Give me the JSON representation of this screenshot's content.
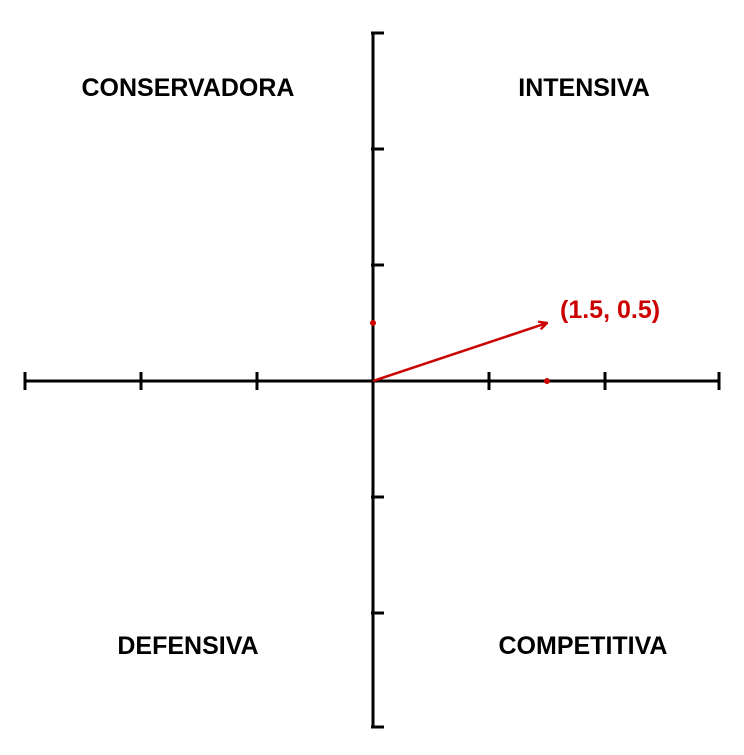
{
  "quadrants": {
    "top_left": "CONSERVADORA",
    "top_right": "INTENSIVA",
    "bottom_left": "DEFENSIVA",
    "bottom_right": "COMPETITIVA"
  },
  "vector": {
    "label": "(1.5, 0.5)",
    "x": 1.5,
    "y": 0.5,
    "color": "#cc0000"
  },
  "axes": {
    "x_range": [
      -3,
      3
    ],
    "y_range": [
      -3,
      3
    ],
    "tick_step": 1,
    "color": "#000000"
  }
}
